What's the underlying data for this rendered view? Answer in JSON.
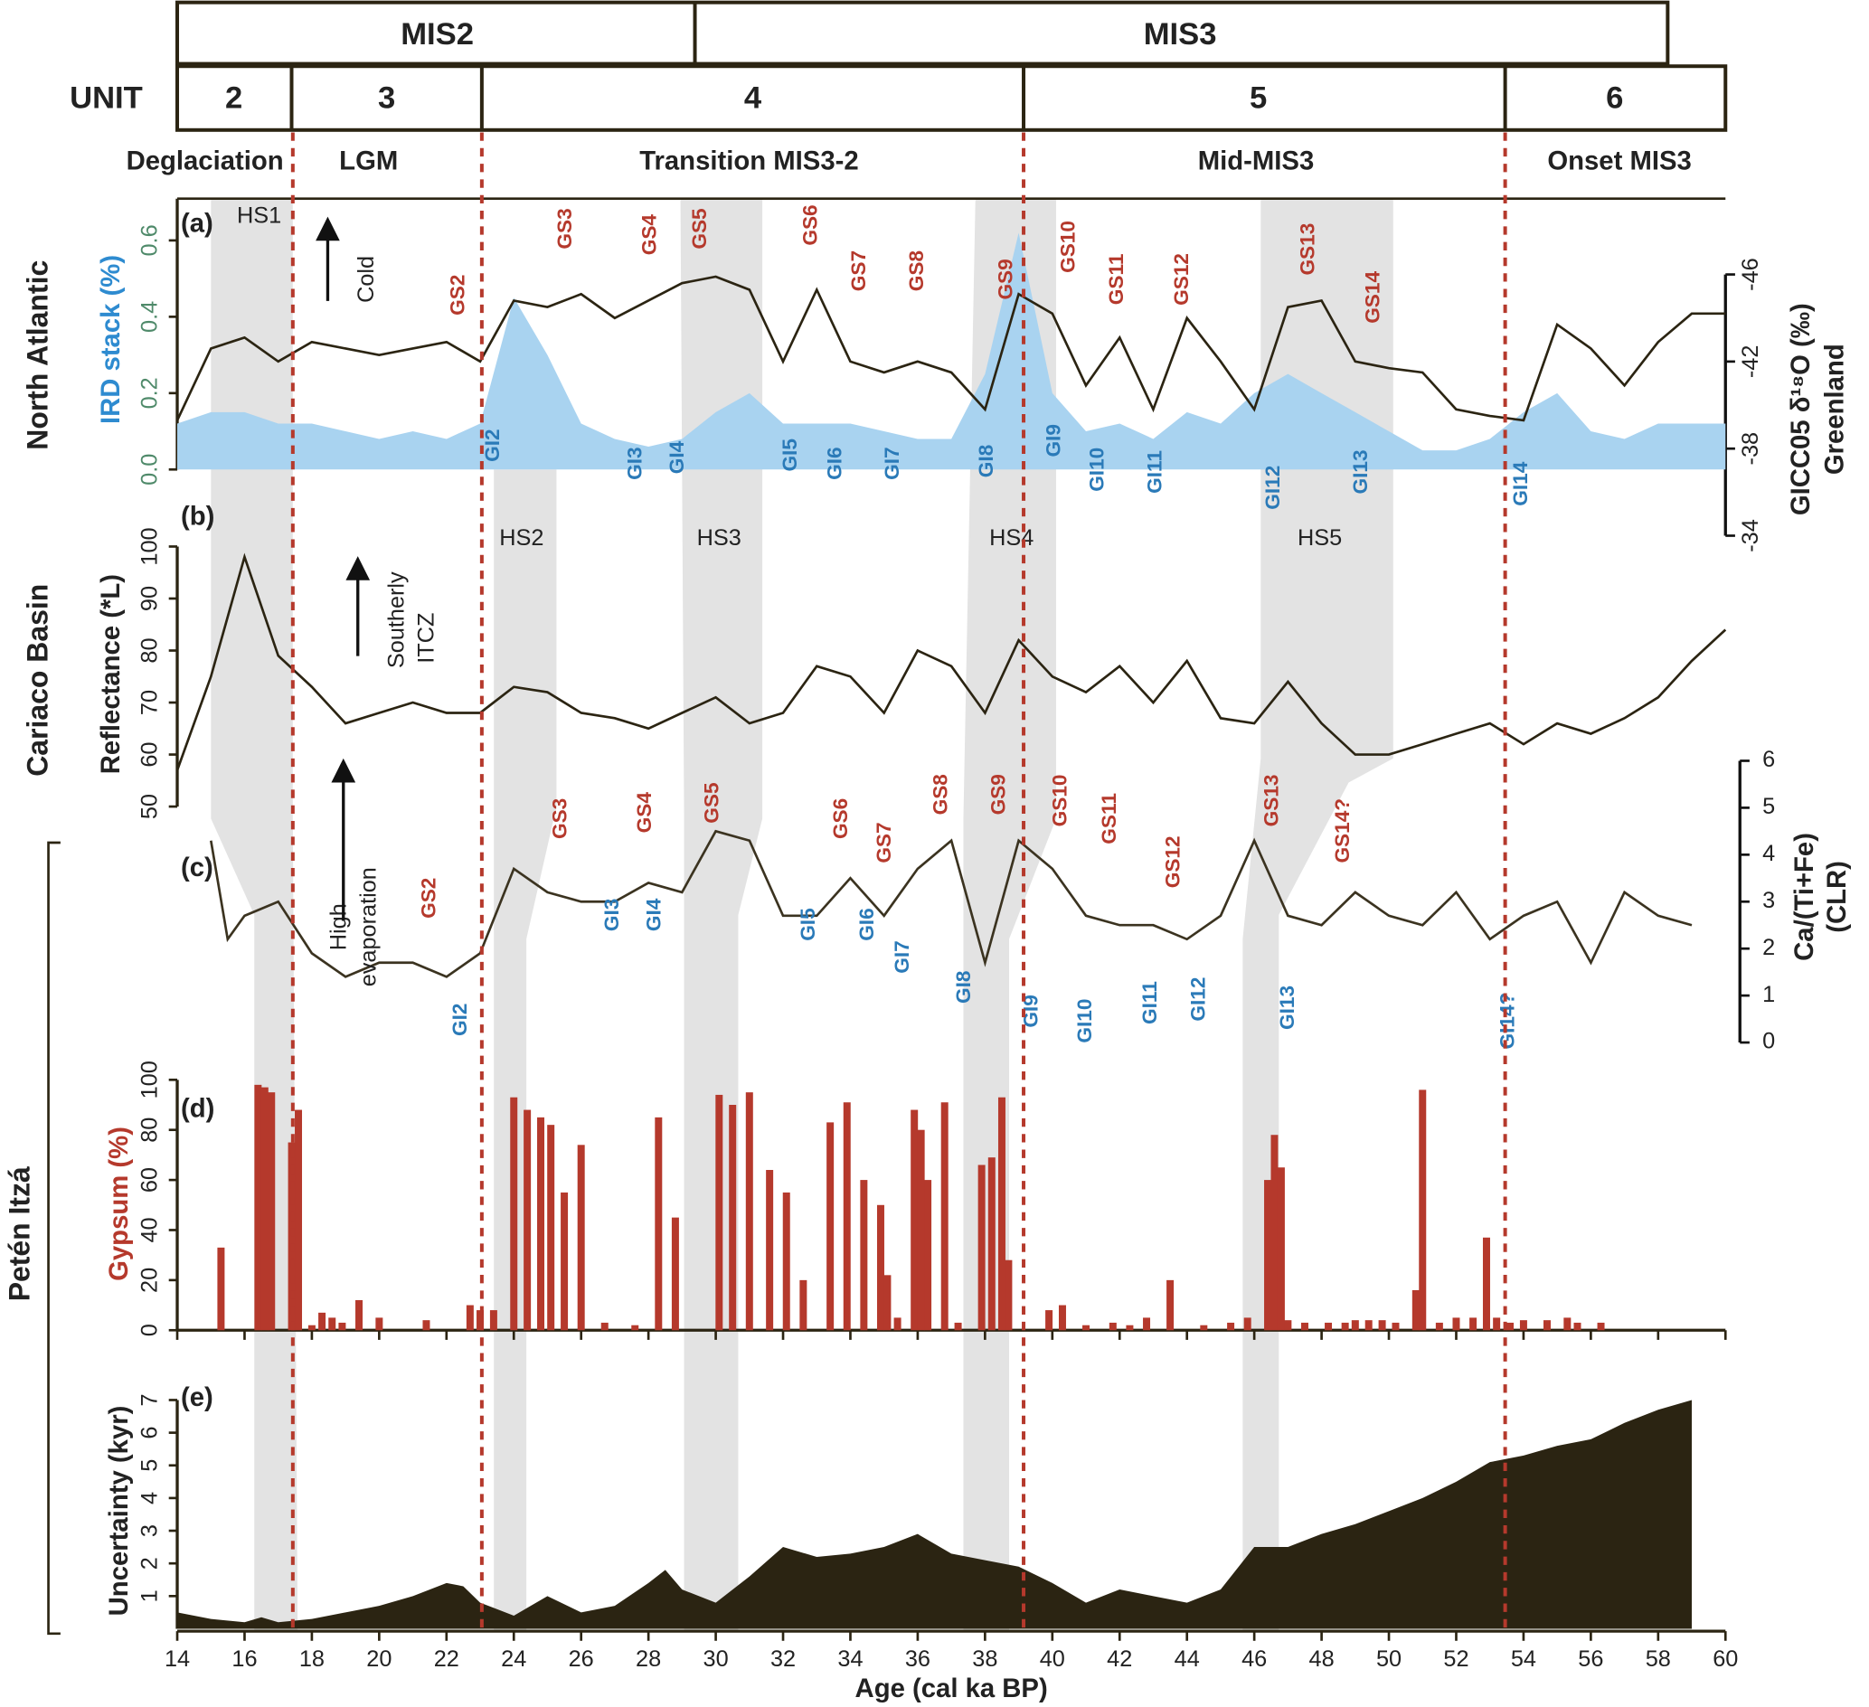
{
  "header": {
    "mis": [
      "MIS2",
      "MIS3"
    ],
    "unit_title": "UNIT",
    "units": [
      "2",
      "3",
      "4",
      "5",
      "6"
    ],
    "phases": [
      "Deglaciation",
      "LGM",
      "Transition MIS3-2",
      "Mid-MIS3",
      "Onset MIS3"
    ]
  },
  "regions": [
    "North Atlantic",
    "Cariaco Basin",
    "Petén Itzá"
  ],
  "chart_data": [
    {
      "type": "line",
      "panel_label": "(a)",
      "ylabel": "IRD stack (%)",
      "y2label": "GICC05 δ¹⁸O (‰)",
      "y2label2": "Greenland",
      "xlim": [
        14,
        60
      ],
      "ylim": [
        0,
        0.7
      ],
      "yticks": [
        {
          "value": 0,
          "label": "0.0"
        },
        0.2,
        0.4,
        0.6
      ],
      "y2lim": [
        -34,
        -46
      ],
      "y2ticks": [
        -46,
        -42,
        -38,
        -34
      ],
      "x": [
        14,
        15,
        16,
        17,
        18,
        19,
        20,
        21,
        22,
        23,
        24,
        25,
        26,
        27,
        28,
        29,
        30,
        31,
        32,
        33,
        34,
        35,
        36,
        37,
        38,
        39,
        40,
        41,
        42,
        43,
        44,
        45,
        46,
        47,
        48,
        49,
        50,
        51,
        52,
        53,
        54,
        55,
        56,
        57,
        58,
        59,
        60
      ],
      "series": [
        {
          "color": "#a9d3f0",
          "fill": true,
          "values": [
            0.12,
            0.15,
            0.15,
            0.12,
            0.12,
            0.1,
            0.08,
            0.1,
            0.08,
            0.12,
            0.45,
            0.3,
            0.12,
            0.08,
            0.06,
            0.08,
            0.15,
            0.2,
            0.12,
            0.12,
            0.12,
            0.1,
            0.08,
            0.08,
            0.25,
            0.62,
            0.2,
            0.1,
            0.12,
            0.08,
            0.15,
            0.12,
            0.2,
            0.25,
            0.2,
            0.15,
            0.1,
            0.05,
            0.05,
            0.08,
            0.15,
            0.2,
            0.1,
            0.08,
            0.12,
            0.12,
            0.12
          ]
        },
        {
          "color": "#2b2412",
          "fill": false,
          "axis": "y2",
          "values": [
            -39.3,
            -42.6,
            -43.1,
            -42,
            -42.9,
            -42.6,
            -42.3,
            -42.6,
            -42.9,
            -42,
            -44.8,
            -44.5,
            -45.1,
            -44,
            -44.8,
            -45.6,
            -45.9,
            -45.3,
            -42,
            -45.3,
            -42,
            -41.5,
            -42,
            -41.5,
            -39.8,
            -45.1,
            -44.2,
            -40.9,
            -43.1,
            -39.8,
            -44,
            -42,
            -39.8,
            -44.5,
            -44.8,
            -42,
            -41.7,
            -41.5,
            -39.8,
            -39.5,
            -39.3,
            -43.7,
            -42.6,
            -40.9,
            -42.9,
            -44.2,
            -44.2
          ]
        }
      ],
      "annotations": [
        {
          "text": "HS1",
          "color": "#222222"
        },
        {
          "text": "Cold",
          "color": "#222222"
        },
        {
          "text": "GS2",
          "color": "#b5392c"
        },
        {
          "text": "GS3",
          "color": "#b5392c"
        },
        {
          "text": "GS4",
          "color": "#b5392c"
        },
        {
          "text": "GS5",
          "color": "#b5392c"
        },
        {
          "text": "GS6",
          "color": "#b5392c"
        },
        {
          "text": "GS7",
          "color": "#b5392c"
        },
        {
          "text": "GS8",
          "color": "#b5392c"
        },
        {
          "text": "GS9",
          "color": "#b5392c"
        },
        {
          "text": "GS10",
          "color": "#b5392c"
        },
        {
          "text": "GS11",
          "color": "#b5392c"
        },
        {
          "text": "GS12",
          "color": "#b5392c"
        },
        {
          "text": "GS13",
          "color": "#b5392c"
        },
        {
          "text": "GS14",
          "color": "#b5392c"
        },
        {
          "text": "GI2",
          "color": "#2a7ab8"
        },
        {
          "text": "GI3",
          "color": "#2a7ab8"
        },
        {
          "text": "GI4",
          "color": "#2a7ab8"
        },
        {
          "text": "GI5",
          "color": "#2a7ab8"
        },
        {
          "text": "GI6",
          "color": "#2a7ab8"
        },
        {
          "text": "GI7",
          "color": "#2a7ab8"
        },
        {
          "text": "GI8",
          "color": "#2a7ab8"
        },
        {
          "text": "GI9",
          "color": "#2a7ab8"
        },
        {
          "text": "GI10",
          "color": "#2a7ab8"
        },
        {
          "text": "GI11",
          "color": "#2a7ab8"
        },
        {
          "text": "GI12",
          "color": "#2a7ab8"
        },
        {
          "text": "GI13",
          "color": "#2a7ab8"
        },
        {
          "text": "GI14",
          "color": "#2a7ab8"
        }
      ]
    },
    {
      "type": "line",
      "panel_label": "(b)",
      "ylabel": "Reflectance (*L)",
      "xlim": [
        14,
        60
      ],
      "ylim": [
        50,
        100
      ],
      "yticks": [
        50,
        60,
        70,
        80,
        90,
        100
      ],
      "x": [
        14,
        15,
        16,
        17,
        18,
        19,
        20,
        21,
        22,
        23,
        24,
        25,
        26,
        27,
        28,
        29,
        30,
        31,
        32,
        33,
        34,
        35,
        36,
        37,
        38,
        39,
        40,
        41,
        42,
        43,
        44,
        45,
        46,
        47,
        48,
        49,
        50,
        51,
        52,
        53,
        54,
        55,
        56,
        57,
        58,
        59,
        60
      ],
      "series": [
        {
          "color": "#2b2412",
          "fill": false,
          "values": [
            57,
            75,
            98,
            79,
            73,
            66,
            68,
            70,
            68,
            68,
            73,
            72,
            68,
            67,
            65,
            68,
            71,
            66,
            68,
            77,
            75,
            68,
            80,
            77,
            68,
            82,
            75,
            72,
            77,
            70,
            78,
            67,
            66,
            74,
            66,
            60,
            60,
            62,
            64,
            66,
            62,
            66,
            64,
            67,
            71,
            78,
            84
          ]
        }
      ],
      "annotations": [
        {
          "text": "HS2",
          "color": "#222222"
        },
        {
          "text": "HS3",
          "color": "#222222"
        },
        {
          "text": "HS4",
          "color": "#222222"
        },
        {
          "text": "HS5",
          "color": "#222222"
        },
        {
          "text": "Southerly",
          "color": "#222222"
        },
        {
          "text": "ITCZ",
          "color": "#222222"
        }
      ]
    },
    {
      "type": "line",
      "panel_label": "(c)",
      "y2label": "Ca/(Ti+Fe)",
      "y2label2": "(CLR)",
      "xlim": [
        14,
        60
      ],
      "y2lim": [
        0,
        6
      ],
      "y2ticks": [
        0,
        1,
        2,
        3,
        4,
        5,
        6
      ],
      "x": [
        15,
        15.5,
        16,
        17,
        18,
        19,
        20,
        21,
        22,
        23,
        24,
        25,
        26,
        27,
        28,
        29,
        30,
        31,
        32,
        33,
        34,
        35,
        36,
        37,
        38,
        39,
        40,
        41,
        42,
        43,
        44,
        45,
        46,
        47,
        48,
        49,
        50,
        51,
        52,
        53,
        54,
        55,
        56,
        57,
        58,
        59
      ],
      "series": [
        {
          "color": "#3b3320",
          "fill": false,
          "axis": "y2",
          "values": [
            4.3,
            2.2,
            2.7,
            3,
            1.9,
            1.4,
            1.7,
            1.7,
            1.4,
            1.9,
            3.7,
            3.2,
            3,
            3,
            3.4,
            3.2,
            4.5,
            4.3,
            2.7,
            2.7,
            3.5,
            2.7,
            3.7,
            4.3,
            1.7,
            4.3,
            3.7,
            2.7,
            2.5,
            2.5,
            2.2,
            2.7,
            4.3,
            2.7,
            2.5,
            3.2,
            2.7,
            2.5,
            3.2,
            2.2,
            2.7,
            3,
            1.7,
            3.2,
            2.7,
            2.5
          ]
        }
      ],
      "annotations": [
        {
          "text": "High",
          "color": "#222222"
        },
        {
          "text": "evaporation",
          "color": "#222222"
        },
        {
          "text": "GS2",
          "color": "#b5392c"
        },
        {
          "text": "GS3",
          "color": "#b5392c"
        },
        {
          "text": "GS4",
          "color": "#b5392c"
        },
        {
          "text": "GS5",
          "color": "#b5392c"
        },
        {
          "text": "GS6",
          "color": "#b5392c"
        },
        {
          "text": "GS7",
          "color": "#b5392c"
        },
        {
          "text": "GS8",
          "color": "#b5392c"
        },
        {
          "text": "GS9",
          "color": "#b5392c"
        },
        {
          "text": "GS10",
          "color": "#b5392c"
        },
        {
          "text": "GS11",
          "color": "#b5392c"
        },
        {
          "text": "GS12",
          "color": "#b5392c"
        },
        {
          "text": "GS13",
          "color": "#b5392c"
        },
        {
          "text": "GS14?",
          "color": "#b5392c"
        },
        {
          "text": "GI2",
          "color": "#2a7ab8"
        },
        {
          "text": "GI3",
          "color": "#2a7ab8"
        },
        {
          "text": "GI4",
          "color": "#2a7ab8"
        },
        {
          "text": "GI5",
          "color": "#2a7ab8"
        },
        {
          "text": "GI6",
          "color": "#2a7ab8"
        },
        {
          "text": "GI7",
          "color": "#2a7ab8"
        },
        {
          "text": "GI8",
          "color": "#2a7ab8"
        },
        {
          "text": "GI9",
          "color": "#2a7ab8"
        },
        {
          "text": "GI10",
          "color": "#2a7ab8"
        },
        {
          "text": "GI11",
          "color": "#2a7ab8"
        },
        {
          "text": "GI12",
          "color": "#2a7ab8"
        },
        {
          "text": "GI13",
          "color": "#2a7ab8"
        },
        {
          "text": "GI14?",
          "color": "#2a7ab8"
        }
      ]
    },
    {
      "type": "bar",
      "panel_label": "(d)",
      "ylabel": "Gypsum (%)",
      "color": "#b5392c",
      "xlim": [
        14,
        60
      ],
      "ylim": [
        0,
        100
      ],
      "yticks": [
        0,
        20,
        40,
        60,
        80,
        100
      ],
      "x": [
        15.3,
        16.4,
        16.6,
        16.8,
        17.4,
        17.6,
        18,
        18.3,
        18.6,
        18.9,
        19.4,
        20,
        21.4,
        22.7,
        23,
        23.4,
        24,
        24.4,
        24.8,
        25.1,
        25.5,
        26,
        26.7,
        27.6,
        28.3,
        28.8,
        30.1,
        30.5,
        31,
        31.6,
        32.1,
        32.6,
        33.4,
        33.9,
        34.4,
        34.9,
        35.1,
        35.4,
        35.9,
        36.1,
        36.3,
        36.8,
        37.2,
        37.9,
        38.2,
        38.5,
        38.7,
        39.9,
        40.3,
        41,
        41.8,
        42.3,
        42.8,
        43.5,
        44.5,
        45.3,
        45.8,
        46.4,
        46.6,
        46.8,
        47,
        47.5,
        48.2,
        48.7,
        49,
        49.4,
        49.8,
        50.2,
        50.8,
        51,
        51.5,
        52,
        52.5,
        52.9,
        53.2,
        53.6,
        54,
        54.7,
        55.3,
        55.6,
        56.3
      ],
      "values": [
        33,
        98,
        97,
        95,
        75,
        88,
        2,
        7,
        5,
        3,
        12,
        5,
        4,
        10,
        8,
        8,
        93,
        88,
        85,
        82,
        55,
        74,
        3,
        2,
        85,
        45,
        94,
        90,
        95,
        64,
        55,
        20,
        83,
        91,
        60,
        50,
        22,
        5,
        88,
        80,
        60,
        91,
        3,
        66,
        69,
        93,
        28,
        8,
        10,
        2,
        3,
        2,
        5,
        20,
        2,
        3,
        5,
        60,
        78,
        65,
        4,
        3,
        3,
        3,
        4,
        4,
        4,
        3,
        16,
        96,
        3,
        5,
        5,
        37,
        5,
        3,
        4,
        4,
        5,
        3,
        3
      ]
    },
    {
      "type": "area",
      "panel_label": "(e)",
      "ylabel": "Uncertainty (kyr)",
      "xlabel": "Age (cal ka BP)",
      "color": "#2b2412",
      "xlim": [
        14,
        60
      ],
      "xticks": [
        14,
        16,
        18,
        20,
        22,
        24,
        26,
        28,
        30,
        32,
        34,
        36,
        38,
        40,
        42,
        44,
        46,
        48,
        50,
        52,
        54,
        56,
        58,
        60
      ],
      "ylim": [
        0,
        7
      ],
      "yticks": [
        1,
        2,
        3,
        4,
        5,
        6,
        7
      ],
      "x": [
        14,
        15,
        16,
        16.5,
        17,
        18,
        19,
        20,
        21,
        22,
        22.5,
        23,
        24,
        25,
        26,
        27,
        28,
        28.5,
        29,
        30,
        31,
        32,
        33,
        34,
        35,
        36,
        37,
        38,
        39,
        40,
        41,
        42,
        43,
        44,
        45,
        46,
        47,
        48,
        49,
        50,
        51,
        52,
        53,
        54,
        55,
        56,
        57,
        58,
        59
      ],
      "values": [
        0.5,
        0.3,
        0.2,
        0.35,
        0.2,
        0.3,
        0.5,
        0.7,
        1,
        1.4,
        1.3,
        0.8,
        0.4,
        1,
        0.5,
        0.7,
        1.4,
        1.8,
        1.2,
        0.8,
        1.6,
        2.5,
        2.2,
        2.3,
        2.5,
        2.9,
        2.3,
        2.1,
        1.9,
        1.4,
        0.8,
        1.2,
        1,
        0.8,
        1.2,
        2.5,
        2.5,
        2.9,
        3.2,
        3.6,
        4,
        4.5,
        5.1,
        5.3,
        5.6,
        5.8,
        6.3,
        6.7,
        7
      ]
    }
  ]
}
